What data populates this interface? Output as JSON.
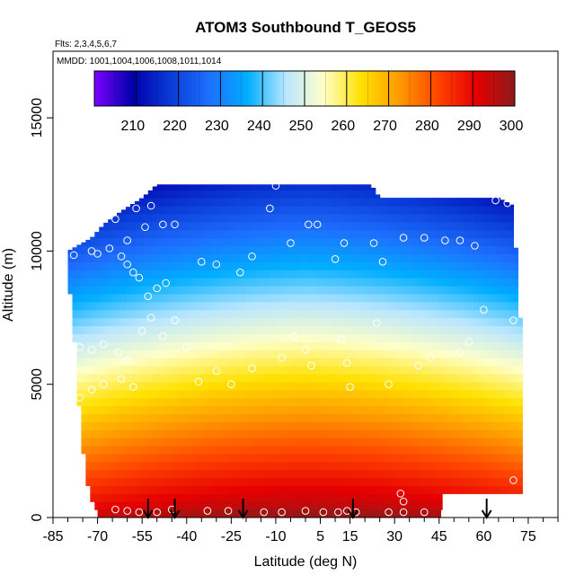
{
  "chart_data": {
    "type": "heatmap",
    "title": "ATOM3 Southbound T_GEOS5",
    "flights_note": "Flts: 2,3,4,5,6,7",
    "mmdd_note": "MMDD: 1001,1004,1006,1008,1011,1014",
    "xlabel": "Latitude (deg N)",
    "ylabel": "Altitude (m)",
    "xlim": [
      -85,
      85
    ],
    "ylim": [
      0,
      17500
    ],
    "x_ticks": [
      -85,
      -70,
      -55,
      -40,
      -25,
      -10,
      5,
      15,
      30,
      45,
      60,
      75
    ],
    "x_tick_labels": [
      "-85",
      "-70",
      "-55",
      "-40",
      "-25",
      "-10",
      "5",
      "15",
      "30",
      "45",
      "60",
      "75"
    ],
    "x_minor_step": 5,
    "y_ticks": [
      0,
      5000,
      10000,
      15000
    ],
    "y_tick_labels": [
      "0",
      "5000",
      "10000",
      "15000"
    ],
    "colorbar": {
      "min": 200,
      "max": 300,
      "ticks": [
        210,
        220,
        230,
        240,
        250,
        260,
        270,
        280,
        290,
        300
      ],
      "tick_labels": [
        "210",
        "220",
        "230",
        "240",
        "250",
        "260",
        "270",
        "280",
        "290",
        "300"
      ],
      "stops": [
        "#7d00ff",
        "#0000ab",
        "#0a3bd6",
        "#1e6fff",
        "#00aeff",
        "#b8e6ff",
        "#ffffc8",
        "#ffe100",
        "#ff9900",
        "#ff4400",
        "#e60000",
        "#8c1a1a"
      ]
    },
    "arrow_latitudes": [
      -53,
      -44,
      -21,
      16,
      61
    ],
    "extent": {
      "lat": [
        -80,
        72
      ],
      "alt_top": [
        [
          -80,
          10000
        ],
        [
          -72,
          10500
        ],
        [
          -68,
          11000
        ],
        [
          -62,
          11500
        ],
        [
          -55,
          12000
        ],
        [
          -50,
          12500
        ],
        [
          -30,
          12500
        ],
        [
          -10,
          12500
        ],
        [
          10,
          12500
        ],
        [
          22,
          12500
        ],
        [
          25,
          12000
        ],
        [
          40,
          12000
        ],
        [
          55,
          12000
        ],
        [
          65,
          12000
        ],
        [
          70,
          11700
        ],
        [
          72,
          7500
        ]
      ],
      "alt_bottom": [
        [
          -80,
          9500
        ],
        [
          -78,
          7000
        ],
        [
          -76,
          4000
        ],
        [
          -74,
          1500
        ],
        [
          -72,
          700
        ],
        [
          -70,
          300
        ],
        [
          45,
          300
        ],
        [
          46,
          900
        ],
        [
          72,
          900
        ]
      ]
    },
    "series": [
      {
        "name": "ground_fill",
        "description": "surface band",
        "lat_range": [
          -70,
          45
        ],
        "alt_range": [
          0,
          300
        ]
      }
    ],
    "points": [
      {
        "x": -83,
        "y": 9900
      },
      {
        "x": -78,
        "y": 9850
      },
      {
        "x": -72,
        "y": 10000
      },
      {
        "x": -70,
        "y": 9900
      },
      {
        "x": -66,
        "y": 10100
      },
      {
        "x": -62,
        "y": 9800
      },
      {
        "x": -60,
        "y": 9500
      },
      {
        "x": -58,
        "y": 9200
      },
      {
        "x": -56,
        "y": 9000
      },
      {
        "x": -53,
        "y": 8300
      },
      {
        "x": -50,
        "y": 8600
      },
      {
        "x": -47,
        "y": 8800
      },
      {
        "x": -64,
        "y": 11200
      },
      {
        "x": -57,
        "y": 11600
      },
      {
        "x": -52,
        "y": 11700
      },
      {
        "x": -48,
        "y": 11000
      },
      {
        "x": -44,
        "y": 11000
      },
      {
        "x": -54,
        "y": 10900
      },
      {
        "x": -60,
        "y": 10400
      },
      {
        "x": -35,
        "y": 9600
      },
      {
        "x": -30,
        "y": 9500
      },
      {
        "x": -22,
        "y": 9200
      },
      {
        "x": -18,
        "y": 9800
      },
      {
        "x": -12,
        "y": 11600
      },
      {
        "x": -5,
        "y": 10300
      },
      {
        "x": 1,
        "y": 11000
      },
      {
        "x": 4,
        "y": 11000
      },
      {
        "x": 10,
        "y": 9700
      },
      {
        "x": 13,
        "y": 10300
      },
      {
        "x": 23,
        "y": 10300
      },
      {
        "x": 26,
        "y": 9600
      },
      {
        "x": 33,
        "y": 10500
      },
      {
        "x": 40,
        "y": 10500
      },
      {
        "x": 47,
        "y": 10400
      },
      {
        "x": 52,
        "y": 10400
      },
      {
        "x": 57,
        "y": 10200
      },
      {
        "x": 60,
        "y": 7800
      },
      {
        "x": 64,
        "y": 11900
      },
      {
        "x": 68,
        "y": 11800
      },
      {
        "x": 70,
        "y": 7400
      },
      {
        "x": -80,
        "y": 7000
      },
      {
        "x": -76,
        "y": 6400
      },
      {
        "x": -72,
        "y": 6300
      },
      {
        "x": -68,
        "y": 6500
      },
      {
        "x": -63,
        "y": 6200
      },
      {
        "x": -60,
        "y": 5900
      },
      {
        "x": -55,
        "y": 7000
      },
      {
        "x": -52,
        "y": 7500
      },
      {
        "x": -48,
        "y": 6800
      },
      {
        "x": -44,
        "y": 7400
      },
      {
        "x": -40,
        "y": 6400
      },
      {
        "x": -36,
        "y": 5100
      },
      {
        "x": -30,
        "y": 5500
      },
      {
        "x": -25,
        "y": 5000
      },
      {
        "x": -18,
        "y": 5600
      },
      {
        "x": -8,
        "y": 6000
      },
      {
        "x": -4,
        "y": 6800
      },
      {
        "x": 0,
        "y": 6300
      },
      {
        "x": 2,
        "y": 5700
      },
      {
        "x": 12,
        "y": 6700
      },
      {
        "x": 14,
        "y": 5800
      },
      {
        "x": 15,
        "y": 4900
      },
      {
        "x": 24,
        "y": 7300
      },
      {
        "x": 28,
        "y": 5000
      },
      {
        "x": 38,
        "y": 5700
      },
      {
        "x": 42,
        "y": 6000
      },
      {
        "x": 52,
        "y": 6200
      },
      {
        "x": 55,
        "y": 6600
      },
      {
        "x": -72,
        "y": 4800
      },
      {
        "x": -68,
        "y": 5000
      },
      {
        "x": -62,
        "y": 5200
      },
      {
        "x": -58,
        "y": 4900
      },
      {
        "x": -76,
        "y": 4500
      },
      {
        "x": -64,
        "y": 300
      },
      {
        "x": -60,
        "y": 250
      },
      {
        "x": -56,
        "y": 200
      },
      {
        "x": -50,
        "y": 200
      },
      {
        "x": -45,
        "y": 300
      },
      {
        "x": -33,
        "y": 250
      },
      {
        "x": -26,
        "y": 250
      },
      {
        "x": -14,
        "y": 200
      },
      {
        "x": -8,
        "y": 200
      },
      {
        "x": 0,
        "y": 250
      },
      {
        "x": 6,
        "y": 200
      },
      {
        "x": 11,
        "y": 200
      },
      {
        "x": 14,
        "y": 250
      },
      {
        "x": 17,
        "y": 200
      },
      {
        "x": 28,
        "y": 200
      },
      {
        "x": 33,
        "y": 200
      },
      {
        "x": 40,
        "y": 200
      },
      {
        "x": 32,
        "y": 900
      },
      {
        "x": 33,
        "y": 600
      },
      {
        "x": 53,
        "y": 500
      },
      {
        "x": 70,
        "y": 1400
      },
      {
        "x": -10,
        "y": 12450
      }
    ]
  }
}
